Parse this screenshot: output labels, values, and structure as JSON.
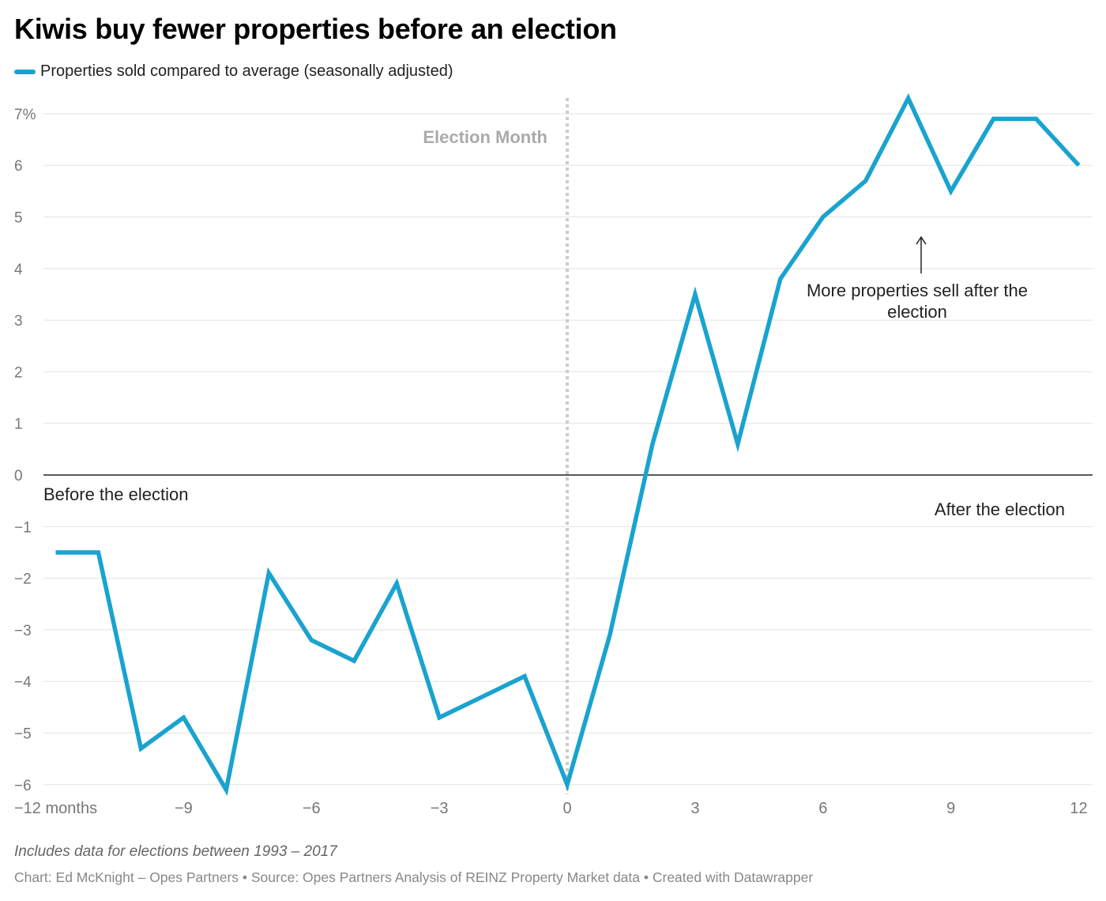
{
  "title": "Kiwis buy fewer properties before an election",
  "notes": "Includes data for elections between 1993 – 2017",
  "credit": "Chart: Ed McKnight – Opes Partners • Source: Opes Partners Analysis of REINZ Property Market data • Created with Datawrapper",
  "chart_data": {
    "type": "line",
    "title": "Kiwis buy fewer properties before an election",
    "xlabel": "",
    "ylabel": "",
    "ylim": [
      -6,
      7
    ],
    "xlim": [
      -12,
      12
    ],
    "grid": true,
    "legend_position": "top-left",
    "y_ticks": [
      "7%",
      "6",
      "5",
      "4",
      "3",
      "2",
      "1",
      "0",
      "−1",
      "−2",
      "−3",
      "−4",
      "−5",
      "−6"
    ],
    "y_tick_values": [
      7,
      6,
      5,
      4,
      3,
      2,
      1,
      0,
      -1,
      -2,
      -3,
      -4,
      -5,
      -6
    ],
    "x_ticks": [
      "−12 months",
      "−9",
      "−6",
      "−3",
      "0",
      "3",
      "6",
      "9",
      "12"
    ],
    "x_tick_values": [
      -12,
      -9,
      -6,
      -3,
      0,
      3,
      6,
      9,
      12
    ],
    "series": [
      {
        "name": "Properties sold compared to average (seasonally adjusted)",
        "color": "#1aa3cf",
        "x": [
          -12,
          -11,
          -10,
          -9,
          -8,
          -7,
          -6,
          -5,
          -4,
          -3,
          -2,
          -1,
          0,
          1,
          2,
          3,
          4,
          5,
          6,
          7,
          8,
          9,
          10,
          11,
          12
        ],
        "values": [
          -1.5,
          -1.5,
          -5.3,
          -4.7,
          -6.1,
          -1.9,
          -3.2,
          -3.6,
          -2.1,
          -4.7,
          -4.3,
          -3.9,
          -6.0,
          -3.1,
          0.6,
          3.5,
          0.6,
          3.8,
          5.0,
          5.7,
          7.3,
          5.5,
          6.9,
          6.9,
          6.0
        ]
      }
    ],
    "annotations": {
      "election_month": "Election Month",
      "before": "Before the election",
      "after": "After the election",
      "more_line1": "More properties sell after the",
      "more_line2": "election"
    }
  }
}
